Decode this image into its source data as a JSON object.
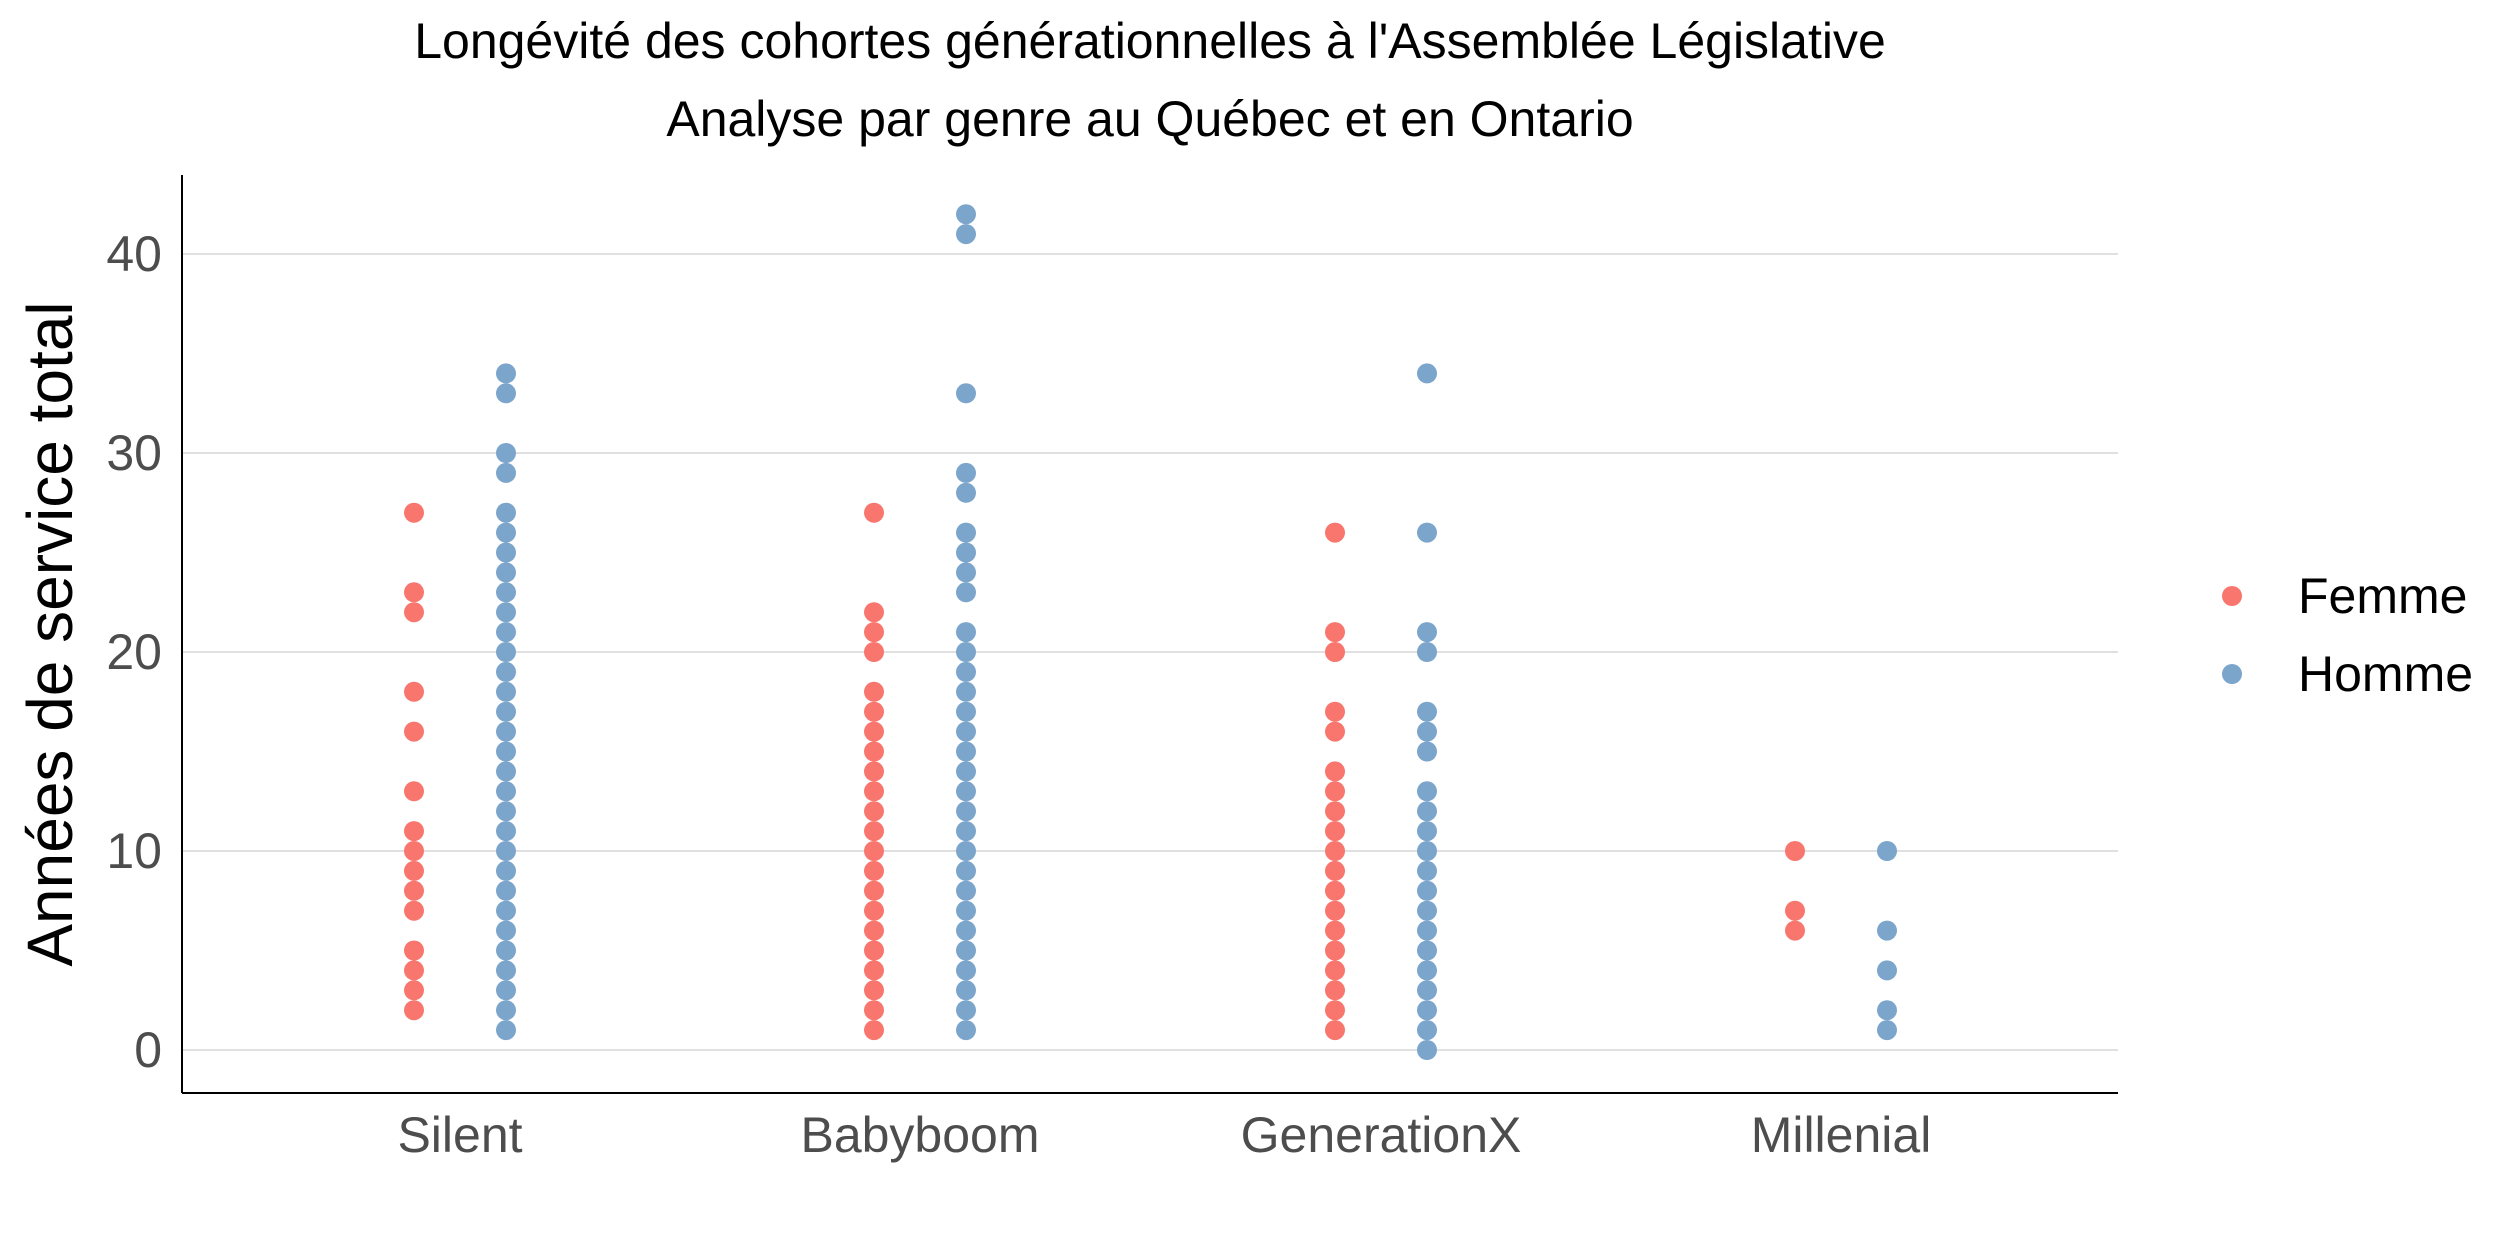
{
  "chart_data": {
    "type": "scatter",
    "title": "Longévité des cohortes générationnelles à l'Assemblée Législative",
    "subtitle": "Analyse par genre au Québec et en Ontario",
    "xlabel": "",
    "ylabel": "Années de service total",
    "categories": [
      "Silent",
      "Babyboom",
      "GenerationX",
      "Millenial"
    ],
    "ylim": [
      -2,
      44
    ],
    "yticks": [
      0,
      10,
      20,
      30,
      40
    ],
    "grid": "horizontal",
    "legend_position": "right",
    "series": [
      {
        "name": "Femme",
        "color": "#F8766D",
        "points": {
          "Silent": [
            2,
            3,
            4,
            5,
            7,
            8,
            9,
            10,
            11,
            13,
            16,
            18,
            22,
            23,
            27
          ],
          "Babyboom": [
            1,
            2,
            3,
            4,
            5,
            6,
            7,
            8,
            9,
            10,
            11,
            12,
            13,
            14,
            15,
            16,
            17,
            18,
            20,
            21,
            22,
            27
          ],
          "GenerationX": [
            1,
            2,
            3,
            4,
            5,
            6,
            7,
            8,
            9,
            10,
            11,
            12,
            13,
            14,
            16,
            17,
            20,
            21,
            26
          ],
          "Millenial": [
            6,
            7,
            10
          ]
        }
      },
      {
        "name": "Homme",
        "color": "#7CA5CC",
        "points": {
          "Silent": [
            1,
            2,
            3,
            4,
            5,
            6,
            7,
            8,
            9,
            10,
            11,
            12,
            13,
            14,
            15,
            16,
            17,
            18,
            19,
            20,
            21,
            22,
            23,
            24,
            25,
            26,
            27,
            29,
            30,
            33,
            34
          ],
          "Babyboom": [
            1,
            2,
            3,
            4,
            5,
            6,
            7,
            8,
            9,
            10,
            11,
            12,
            13,
            14,
            15,
            16,
            17,
            18,
            19,
            20,
            21,
            23,
            24,
            25,
            26,
            28,
            29,
            33,
            41,
            42
          ],
          "GenerationX": [
            0,
            1,
            2,
            3,
            4,
            5,
            6,
            7,
            8,
            9,
            10,
            11,
            12,
            13,
            15,
            16,
            17,
            20,
            21,
            26,
            34
          ],
          "Millenial": [
            1,
            2,
            4,
            6,
            10
          ]
        }
      }
    ]
  }
}
